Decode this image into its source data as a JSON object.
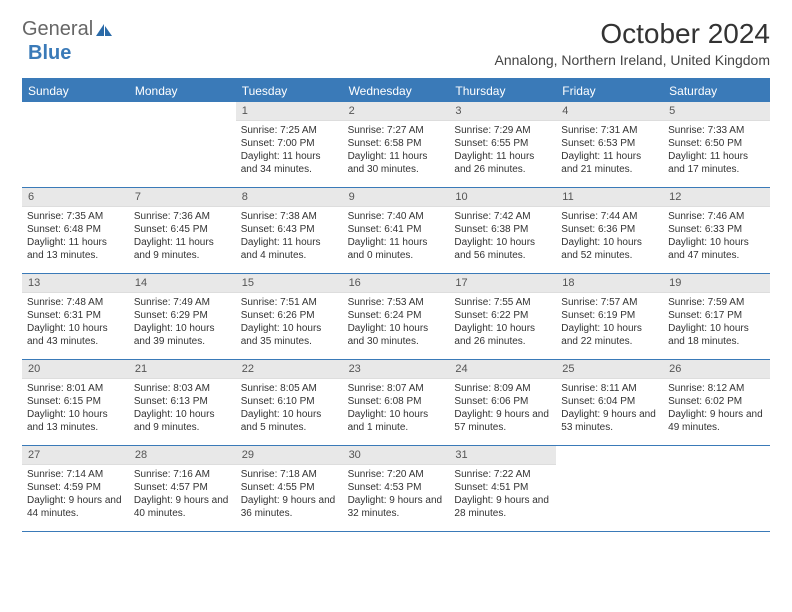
{
  "brand": {
    "text_general": "General",
    "text_blue": "Blue",
    "icon_color": "#2a6aa8"
  },
  "title": "October 2024",
  "location": "Annalong, Northern Ireland, United Kingdom",
  "colors": {
    "header_bg": "#3a7ab8",
    "header_text": "#ffffff",
    "daynum_bg": "#e8e8e8",
    "border": "#3a7ab8",
    "body_text": "#333333"
  },
  "typography": {
    "title_fontsize": 28,
    "location_fontsize": 14,
    "header_fontsize": 12,
    "daynum_fontsize": 11,
    "cell_fontsize": 10
  },
  "layout": {
    "columns": 7,
    "rows": 5,
    "leading_blanks": 2
  },
  "weekdays": [
    "Sunday",
    "Monday",
    "Tuesday",
    "Wednesday",
    "Thursday",
    "Friday",
    "Saturday"
  ],
  "days": [
    {
      "n": "1",
      "sunrise": "Sunrise: 7:25 AM",
      "sunset": "Sunset: 7:00 PM",
      "daylight": "Daylight: 11 hours and 34 minutes."
    },
    {
      "n": "2",
      "sunrise": "Sunrise: 7:27 AM",
      "sunset": "Sunset: 6:58 PM",
      "daylight": "Daylight: 11 hours and 30 minutes."
    },
    {
      "n": "3",
      "sunrise": "Sunrise: 7:29 AM",
      "sunset": "Sunset: 6:55 PM",
      "daylight": "Daylight: 11 hours and 26 minutes."
    },
    {
      "n": "4",
      "sunrise": "Sunrise: 7:31 AM",
      "sunset": "Sunset: 6:53 PM",
      "daylight": "Daylight: 11 hours and 21 minutes."
    },
    {
      "n": "5",
      "sunrise": "Sunrise: 7:33 AM",
      "sunset": "Sunset: 6:50 PM",
      "daylight": "Daylight: 11 hours and 17 minutes."
    },
    {
      "n": "6",
      "sunrise": "Sunrise: 7:35 AM",
      "sunset": "Sunset: 6:48 PM",
      "daylight": "Daylight: 11 hours and 13 minutes."
    },
    {
      "n": "7",
      "sunrise": "Sunrise: 7:36 AM",
      "sunset": "Sunset: 6:45 PM",
      "daylight": "Daylight: 11 hours and 9 minutes."
    },
    {
      "n": "8",
      "sunrise": "Sunrise: 7:38 AM",
      "sunset": "Sunset: 6:43 PM",
      "daylight": "Daylight: 11 hours and 4 minutes."
    },
    {
      "n": "9",
      "sunrise": "Sunrise: 7:40 AM",
      "sunset": "Sunset: 6:41 PM",
      "daylight": "Daylight: 11 hours and 0 minutes."
    },
    {
      "n": "10",
      "sunrise": "Sunrise: 7:42 AM",
      "sunset": "Sunset: 6:38 PM",
      "daylight": "Daylight: 10 hours and 56 minutes."
    },
    {
      "n": "11",
      "sunrise": "Sunrise: 7:44 AM",
      "sunset": "Sunset: 6:36 PM",
      "daylight": "Daylight: 10 hours and 52 minutes."
    },
    {
      "n": "12",
      "sunrise": "Sunrise: 7:46 AM",
      "sunset": "Sunset: 6:33 PM",
      "daylight": "Daylight: 10 hours and 47 minutes."
    },
    {
      "n": "13",
      "sunrise": "Sunrise: 7:48 AM",
      "sunset": "Sunset: 6:31 PM",
      "daylight": "Daylight: 10 hours and 43 minutes."
    },
    {
      "n": "14",
      "sunrise": "Sunrise: 7:49 AM",
      "sunset": "Sunset: 6:29 PM",
      "daylight": "Daylight: 10 hours and 39 minutes."
    },
    {
      "n": "15",
      "sunrise": "Sunrise: 7:51 AM",
      "sunset": "Sunset: 6:26 PM",
      "daylight": "Daylight: 10 hours and 35 minutes."
    },
    {
      "n": "16",
      "sunrise": "Sunrise: 7:53 AM",
      "sunset": "Sunset: 6:24 PM",
      "daylight": "Daylight: 10 hours and 30 minutes."
    },
    {
      "n": "17",
      "sunrise": "Sunrise: 7:55 AM",
      "sunset": "Sunset: 6:22 PM",
      "daylight": "Daylight: 10 hours and 26 minutes."
    },
    {
      "n": "18",
      "sunrise": "Sunrise: 7:57 AM",
      "sunset": "Sunset: 6:19 PM",
      "daylight": "Daylight: 10 hours and 22 minutes."
    },
    {
      "n": "19",
      "sunrise": "Sunrise: 7:59 AM",
      "sunset": "Sunset: 6:17 PM",
      "daylight": "Daylight: 10 hours and 18 minutes."
    },
    {
      "n": "20",
      "sunrise": "Sunrise: 8:01 AM",
      "sunset": "Sunset: 6:15 PM",
      "daylight": "Daylight: 10 hours and 13 minutes."
    },
    {
      "n": "21",
      "sunrise": "Sunrise: 8:03 AM",
      "sunset": "Sunset: 6:13 PM",
      "daylight": "Daylight: 10 hours and 9 minutes."
    },
    {
      "n": "22",
      "sunrise": "Sunrise: 8:05 AM",
      "sunset": "Sunset: 6:10 PM",
      "daylight": "Daylight: 10 hours and 5 minutes."
    },
    {
      "n": "23",
      "sunrise": "Sunrise: 8:07 AM",
      "sunset": "Sunset: 6:08 PM",
      "daylight": "Daylight: 10 hours and 1 minute."
    },
    {
      "n": "24",
      "sunrise": "Sunrise: 8:09 AM",
      "sunset": "Sunset: 6:06 PM",
      "daylight": "Daylight: 9 hours and 57 minutes."
    },
    {
      "n": "25",
      "sunrise": "Sunrise: 8:11 AM",
      "sunset": "Sunset: 6:04 PM",
      "daylight": "Daylight: 9 hours and 53 minutes."
    },
    {
      "n": "26",
      "sunrise": "Sunrise: 8:12 AM",
      "sunset": "Sunset: 6:02 PM",
      "daylight": "Daylight: 9 hours and 49 minutes."
    },
    {
      "n": "27",
      "sunrise": "Sunrise: 7:14 AM",
      "sunset": "Sunset: 4:59 PM",
      "daylight": "Daylight: 9 hours and 44 minutes."
    },
    {
      "n": "28",
      "sunrise": "Sunrise: 7:16 AM",
      "sunset": "Sunset: 4:57 PM",
      "daylight": "Daylight: 9 hours and 40 minutes."
    },
    {
      "n": "29",
      "sunrise": "Sunrise: 7:18 AM",
      "sunset": "Sunset: 4:55 PM",
      "daylight": "Daylight: 9 hours and 36 minutes."
    },
    {
      "n": "30",
      "sunrise": "Sunrise: 7:20 AM",
      "sunset": "Sunset: 4:53 PM",
      "daylight": "Daylight: 9 hours and 32 minutes."
    },
    {
      "n": "31",
      "sunrise": "Sunrise: 7:22 AM",
      "sunset": "Sunset: 4:51 PM",
      "daylight": "Daylight: 9 hours and 28 minutes."
    }
  ]
}
